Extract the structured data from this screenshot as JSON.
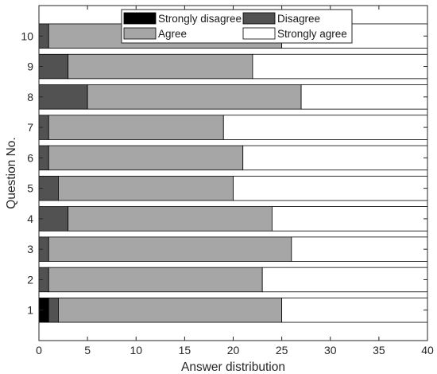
{
  "chart_data": {
    "type": "bar",
    "orientation": "horizontal",
    "stacked": true,
    "title": "",
    "xlabel": "Answer distribution",
    "ylabel": "Question No.",
    "xlim": [
      0,
      40
    ],
    "ylim": [
      0,
      11
    ],
    "xticks": [
      0,
      5,
      10,
      15,
      20,
      25,
      30,
      35,
      40
    ],
    "categories": [
      "1",
      "2",
      "3",
      "4",
      "5",
      "6",
      "7",
      "8",
      "9",
      "10"
    ],
    "series": [
      {
        "name": "Strongly disagree",
        "color": "#000000",
        "values": [
          1,
          0,
          0,
          0,
          0,
          0,
          0,
          0,
          0,
          0
        ]
      },
      {
        "name": "Disagree",
        "color": "#525252",
        "values": [
          1,
          1,
          1,
          3,
          2,
          1,
          1,
          5,
          3,
          1
        ]
      },
      {
        "name": "Agree",
        "color": "#a6a6a6",
        "values": [
          23,
          22,
          25,
          21,
          18,
          20,
          18,
          22,
          19,
          24
        ]
      },
      {
        "name": "Strongly agree",
        "color": "#ffffff",
        "values": [
          15,
          17,
          14,
          16,
          20,
          19,
          21,
          13,
          18,
          15
        ]
      }
    ],
    "grid": false,
    "legend_position": "top-center",
    "legend_columns": 2
  }
}
